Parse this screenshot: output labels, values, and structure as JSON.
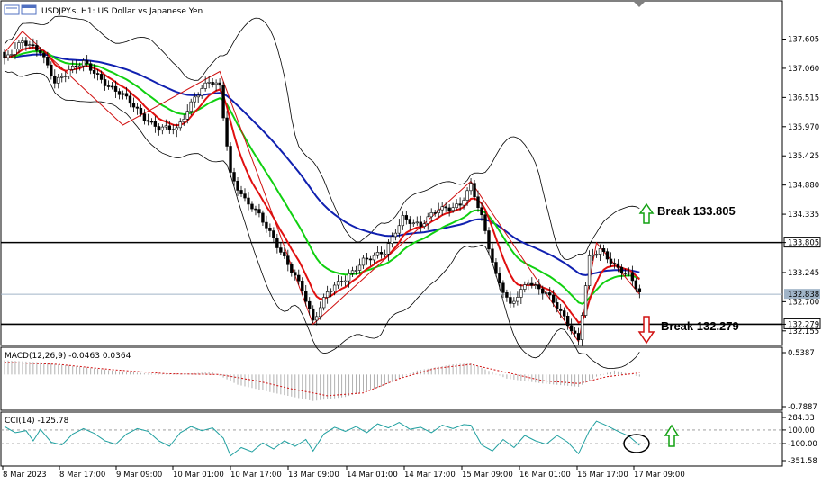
{
  "header": {
    "title": "USDJPY.s, H1:  US Dollar vs Japanese Yen",
    "macd_label": "MACD(12,26,9) -0.0463 0.0364",
    "cci_label": "CCI(14) -125.78"
  },
  "annotations": {
    "break_up": "Break 133.805",
    "break_down": "Break 132.279"
  },
  "colors": {
    "bull_candle": "#ffffff",
    "bear_candle": "#000000",
    "ma_fast": "#e01010",
    "ma_mid": "#10d010",
    "ma_slow": "#1020b0",
    "bollinger": "#000000",
    "zigzag": "#d01010",
    "macd_hist": "#b0b0b0",
    "macd_signal": "#d01010",
    "cci": "#20a0a0",
    "arrow_up": "#10a010",
    "arrow_down": "#d01010"
  },
  "chart_data": [
    {
      "type": "candlestick",
      "title": "USDJPY.s, H1:  US Dollar vs Japanese Yen",
      "ylim": [
        131.95,
        138.0
      ],
      "y_ticks": [
        "137.605",
        "137.060",
        "136.515",
        "135.970",
        "135.425",
        "134.880",
        "134.335",
        "133.805",
        "133.245",
        "132.700",
        "132.279",
        "132.155"
      ],
      "x_ticks": [
        "8 Mar 2023",
        "8 Mar 17:00",
        "9 Mar 09:00",
        "10 Mar 01:00",
        "10 Mar 17:00",
        "13 Mar 09:00",
        "14 Mar 01:00",
        "14 Mar 17:00",
        "15 Mar 09:00",
        "16 Mar 01:00",
        "16 Mar 17:00",
        "17 Mar 09:00"
      ],
      "current_price": "132.838",
      "horizontal_levels": [
        {
          "value": 133.805,
          "label": "133.805"
        },
        {
          "value": 132.279,
          "label": "132.279"
        }
      ],
      "close_anchors": [
        [
          0,
          137.2
        ],
        [
          5,
          137.6
        ],
        [
          10,
          137.35
        ],
        [
          14,
          136.8
        ],
        [
          18,
          137.05
        ],
        [
          22,
          137.15
        ],
        [
          28,
          136.8
        ],
        [
          33,
          136.55
        ],
        [
          38,
          136.2
        ],
        [
          43,
          135.95
        ],
        [
          48,
          135.9
        ],
        [
          53,
          136.55
        ],
        [
          57,
          136.8
        ],
        [
          60,
          136.7
        ],
        [
          63,
          135.1
        ],
        [
          67,
          134.6
        ],
        [
          71,
          134.3
        ],
        [
          75,
          133.9
        ],
        [
          79,
          133.4
        ],
        [
          83,
          132.9
        ],
        [
          86,
          132.35
        ],
        [
          90,
          132.9
        ],
        [
          95,
          133.1
        ],
        [
          100,
          133.5
        ],
        [
          106,
          133.6
        ],
        [
          111,
          134.3
        ],
        [
          116,
          134.1
        ],
        [
          121,
          134.45
        ],
        [
          127,
          134.5
        ],
        [
          130,
          134.85
        ],
        [
          133,
          134.3
        ],
        [
          137,
          133.2
        ],
        [
          141,
          132.6
        ],
        [
          146,
          133.1
        ],
        [
          151,
          132.85
        ],
        [
          156,
          132.4
        ],
        [
          160,
          132.0
        ],
        [
          163,
          133.5
        ],
        [
          166,
          133.65
        ],
        [
          170,
          133.4
        ],
        [
          174,
          133.2
        ],
        [
          177,
          132.84
        ]
      ],
      "zigzag_points": [
        [
          0,
          137.35
        ],
        [
          5,
          137.75
        ],
        [
          33,
          136.0
        ],
        [
          60,
          137.0
        ],
        [
          86,
          132.28
        ],
        [
          130,
          134.95
        ],
        [
          160,
          131.95
        ],
        [
          165,
          133.8
        ],
        [
          177,
          132.84
        ]
      ]
    },
    {
      "type": "bar",
      "title": "MACD(12,26,9) -0.0463 0.0364",
      "ylim": [
        -0.7887,
        0.5387
      ],
      "y_ticks": [
        "0.5387",
        "-0.7887"
      ],
      "main_anchors": [
        [
          0,
          0.35
        ],
        [
          10,
          0.3
        ],
        [
          20,
          0.2
        ],
        [
          30,
          0.1
        ],
        [
          40,
          0.02
        ],
        [
          50,
          0.02
        ],
        [
          58,
          0.06
        ],
        [
          65,
          -0.25
        ],
        [
          75,
          -0.45
        ],
        [
          86,
          -0.65
        ],
        [
          95,
          -0.55
        ],
        [
          105,
          -0.3
        ],
        [
          115,
          0.1
        ],
        [
          125,
          0.25
        ],
        [
          130,
          0.28
        ],
        [
          140,
          -0.1
        ],
        [
          150,
          -0.22
        ],
        [
          160,
          -0.3
        ],
        [
          165,
          -0.05
        ],
        [
          170,
          0.1
        ],
        [
          177,
          -0.05
        ]
      ],
      "signal_anchors": [
        [
          0,
          0.3
        ],
        [
          15,
          0.25
        ],
        [
          30,
          0.12
        ],
        [
          45,
          0.02
        ],
        [
          60,
          0.0
        ],
        [
          70,
          -0.15
        ],
        [
          80,
          -0.35
        ],
        [
          90,
          -0.52
        ],
        [
          100,
          -0.45
        ],
        [
          110,
          -0.1
        ],
        [
          120,
          0.15
        ],
        [
          130,
          0.25
        ],
        [
          140,
          0.05
        ],
        [
          150,
          -0.15
        ],
        [
          160,
          -0.22
        ],
        [
          168,
          -0.05
        ],
        [
          177,
          0.04
        ]
      ]
    },
    {
      "type": "line",
      "title": "CCI(14) -125.78",
      "ylim": [
        -351.58,
        284.33
      ],
      "y_ticks": [
        "284.33",
        "100.00",
        "-100.00",
        "-351.58"
      ],
      "levels": [
        100,
        -100
      ],
      "anchors": [
        [
          0,
          150
        ],
        [
          3,
          60
        ],
        [
          6,
          90
        ],
        [
          8,
          -60
        ],
        [
          10,
          110
        ],
        [
          13,
          -80
        ],
        [
          16,
          -120
        ],
        [
          19,
          40
        ],
        [
          22,
          120
        ],
        [
          25,
          50
        ],
        [
          28,
          -60
        ],
        [
          31,
          -110
        ],
        [
          34,
          40
        ],
        [
          37,
          120
        ],
        [
          40,
          80
        ],
        [
          43,
          -60
        ],
        [
          46,
          -140
        ],
        [
          49,
          60
        ],
        [
          52,
          150
        ],
        [
          55,
          90
        ],
        [
          58,
          130
        ],
        [
          61,
          -20
        ],
        [
          63,
          -280
        ],
        [
          66,
          -160
        ],
        [
          69,
          -220
        ],
        [
          72,
          -90
        ],
        [
          75,
          -180
        ],
        [
          78,
          -60
        ],
        [
          81,
          -140
        ],
        [
          84,
          -40
        ],
        [
          86,
          -210
        ],
        [
          89,
          40
        ],
        [
          92,
          140
        ],
        [
          95,
          80
        ],
        [
          98,
          150
        ],
        [
          101,
          60
        ],
        [
          104,
          190
        ],
        [
          107,
          130
        ],
        [
          110,
          210
        ],
        [
          113,
          110
        ],
        [
          116,
          140
        ],
        [
          119,
          60
        ],
        [
          122,
          170
        ],
        [
          125,
          120
        ],
        [
          128,
          180
        ],
        [
          130,
          170
        ],
        [
          133,
          -120
        ],
        [
          136,
          -210
        ],
        [
          139,
          -40
        ],
        [
          142,
          -160
        ],
        [
          145,
          20
        ],
        [
          148,
          -60
        ],
        [
          151,
          -110
        ],
        [
          154,
          20
        ],
        [
          157,
          -80
        ],
        [
          160,
          -250
        ],
        [
          163,
          90
        ],
        [
          165,
          230
        ],
        [
          168,
          160
        ],
        [
          171,
          80
        ],
        [
          174,
          10
        ],
        [
          177,
          -126
        ]
      ]
    }
  ]
}
